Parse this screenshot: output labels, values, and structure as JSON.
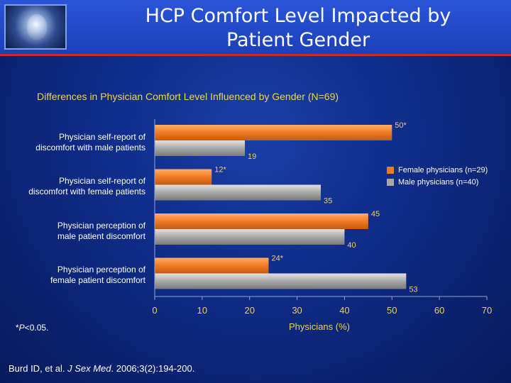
{
  "slide": {
    "title_line1": "HCP Comfort Level Impacted by",
    "title_line2": "Patient Gender",
    "subtitle": "Differences in Physician Comfort Level Influenced by Gender (N=69)",
    "note_prefix": "*",
    "note_p": "P",
    "note_rest": "<0.05.",
    "citation_start": "Burd ID, et al. ",
    "citation_journal": "J Sex Med",
    "citation_end": ". 2006;3(2):194-200."
  },
  "chart_data": {
    "type": "bar",
    "orientation": "horizontal",
    "categories": [
      [
        "Physician self-report of",
        "discomfort with male patients"
      ],
      [
        "Physician self-report of",
        "discomfort with female patients"
      ],
      [
        "Physician perception of",
        "male patient discomfort"
      ],
      [
        "Physician perception of",
        "female patient discomfort"
      ]
    ],
    "series": [
      {
        "name": "Female physicians (n=29)",
        "color": "#f07a24",
        "values": [
          50,
          12,
          45,
          24
        ],
        "labels": [
          "50*",
          "12*",
          "45",
          "24*"
        ]
      },
      {
        "name": "Male physicians (n=40)",
        "color": "#a8a8a8",
        "values": [
          19,
          35,
          40,
          53
        ],
        "labels": [
          "19",
          "35",
          "40",
          "53"
        ]
      }
    ],
    "xlabel": "Physicians (%)",
    "xlim": [
      0,
      70
    ],
    "xticks": [
      0,
      10,
      20,
      30,
      40,
      50,
      60,
      70
    ],
    "legend": "right",
    "grid": false
  }
}
